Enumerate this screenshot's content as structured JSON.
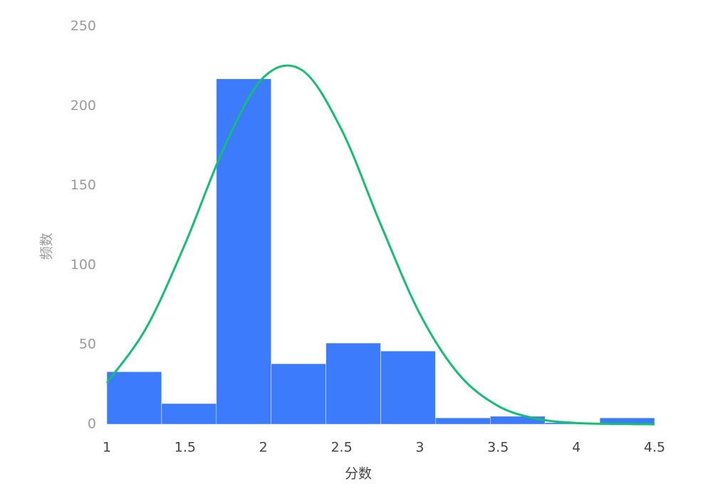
{
  "chart_data": {
    "type": "histogram",
    "x_label": "分数",
    "y_label": "频数",
    "bins": [
      1,
      1.35,
      1.7,
      2.05,
      2.4,
      2.75,
      3.1,
      3.45,
      3.8,
      4.15,
      4.5
    ],
    "values": [
      33,
      13,
      217,
      38,
      51,
      46,
      4,
      5,
      1,
      4
    ],
    "color": "#3d7bfd",
    "curve": {
      "color": "#13bf72",
      "x": [
        1,
        1.25,
        1.5,
        1.75,
        2,
        2.25,
        2.5,
        2.75,
        3,
        3.25,
        3.5,
        3.75,
        4,
        4.25,
        4.5
      ],
      "values": [
        26.0,
        60.2,
        113.3,
        174.0,
        217.8,
        222.3,
        185.0,
        125.5,
        69.4,
        31.3,
        11.5,
        3.4,
        0.8,
        0.2,
        0.0
      ]
    },
    "xlim": [
      1,
      4.5
    ],
    "xticks": [
      1,
      1.5,
      2,
      2.5,
      3,
      3.5,
      4,
      4.5
    ],
    "ylim": [
      0,
      250
    ],
    "yticks": [
      0,
      50,
      100,
      150,
      200,
      250
    ]
  }
}
